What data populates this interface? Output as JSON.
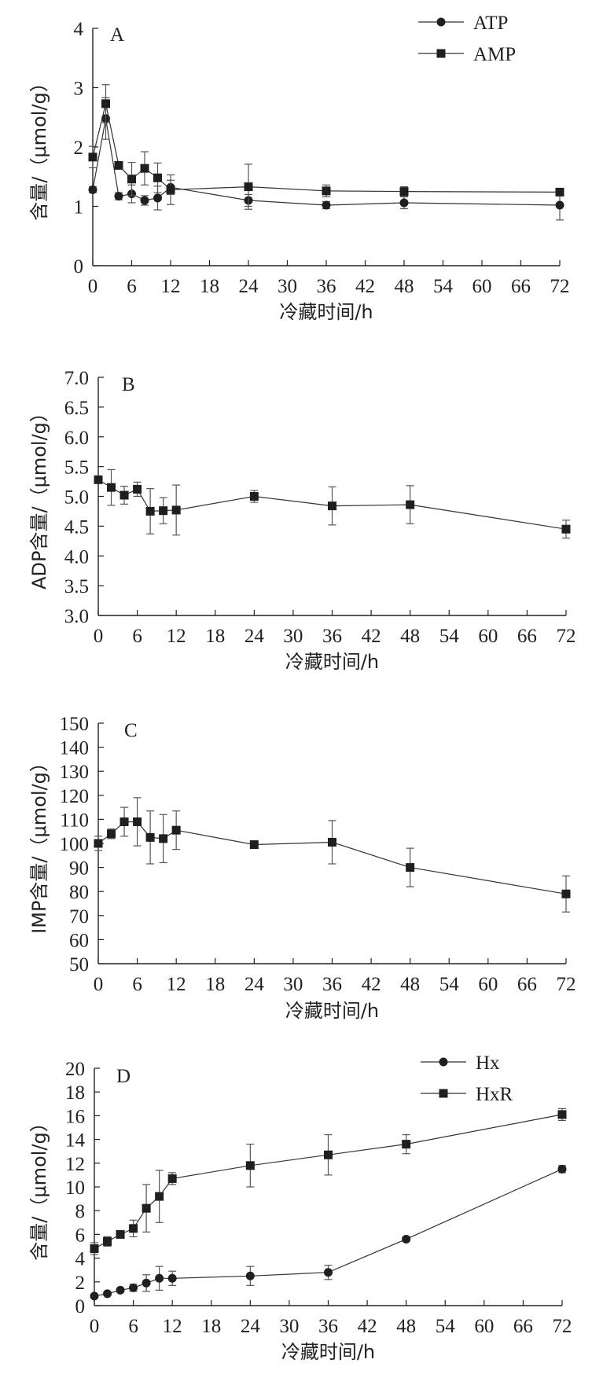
{
  "chart_data": [
    {
      "type": "line",
      "panel_label": "A",
      "xlabel": "冷藏时间/h",
      "ylabel": "含量/（μmol/g）",
      "xlim": [
        0,
        72
      ],
      "ylim": [
        0,
        4
      ],
      "xticks": [
        0,
        6,
        12,
        18,
        24,
        30,
        36,
        42,
        48,
        54,
        60,
        66,
        72
      ],
      "yticks": [
        0,
        1,
        2,
        3,
        4
      ],
      "ytick_decimals": 0,
      "grid": false,
      "legend": "top-right",
      "series": [
        {
          "name": "ATP",
          "marker": "circle",
          "x": [
            0,
            2,
            4,
            6,
            8,
            10,
            12,
            24,
            36,
            48,
            72
          ],
          "y": [
            1.28,
            2.48,
            1.17,
            1.21,
            1.1,
            1.14,
            1.32,
            1.1,
            1.02,
            1.06,
            1.02
          ],
          "err": [
            0.05,
            0.35,
            0.06,
            0.15,
            0.08,
            0.2,
            0.12,
            0.1,
            0.06,
            0.1,
            0.25
          ]
        },
        {
          "name": "AMP",
          "marker": "square",
          "x": [
            0,
            2,
            4,
            6,
            8,
            10,
            12,
            24,
            36,
            48,
            72
          ],
          "y": [
            1.83,
            2.73,
            1.69,
            1.46,
            1.64,
            1.48,
            1.28,
            1.33,
            1.26,
            1.25,
            1.24
          ],
          "err": [
            0.18,
            0.32,
            0.05,
            0.28,
            0.28,
            0.25,
            0.25,
            0.38,
            0.1,
            0.08,
            0.05
          ]
        }
      ]
    },
    {
      "type": "line",
      "panel_label": "B",
      "xlabel": "冷藏时间/h",
      "ylabel": "ADP含量/（μmol/g）",
      "xlim": [
        0,
        72
      ],
      "ylim": [
        3.0,
        7.0
      ],
      "xticks": [
        0,
        6,
        12,
        18,
        24,
        30,
        36,
        42,
        48,
        54,
        60,
        66,
        72
      ],
      "yticks": [
        3.0,
        3.5,
        4.0,
        4.5,
        5.0,
        5.5,
        6.0,
        6.5,
        7.0
      ],
      "ytick_decimals": 1,
      "grid": false,
      "series": [
        {
          "marker": "square",
          "x": [
            0,
            2,
            4,
            6,
            8,
            10,
            12,
            24,
            36,
            48,
            72
          ],
          "y": [
            5.28,
            5.15,
            5.02,
            5.12,
            4.75,
            4.76,
            4.77,
            5.0,
            4.84,
            4.86,
            4.45
          ],
          "err": [
            0.05,
            0.3,
            0.15,
            0.12,
            0.38,
            0.22,
            0.42,
            0.1,
            0.32,
            0.32,
            0.15
          ]
        }
      ]
    },
    {
      "type": "line",
      "panel_label": "C",
      "xlabel": "冷藏时间/h",
      "ylabel": "IMP含量/（μmol/g）",
      "xlim": [
        0,
        72
      ],
      "ylim": [
        50,
        150
      ],
      "xticks": [
        0,
        6,
        12,
        18,
        24,
        30,
        36,
        42,
        48,
        54,
        60,
        66,
        72
      ],
      "yticks": [
        50,
        60,
        70,
        80,
        90,
        100,
        110,
        120,
        130,
        140,
        150
      ],
      "ytick_decimals": 0,
      "grid": false,
      "series": [
        {
          "marker": "square",
          "x": [
            0,
            2,
            4,
            6,
            8,
            10,
            12,
            24,
            36,
            48,
            72
          ],
          "y": [
            100,
            104,
            109,
            109,
            102.5,
            102,
            105.5,
            99.5,
            100.5,
            90,
            79
          ],
          "err": [
            3,
            2,
            6,
            10,
            11,
            10,
            8,
            1.5,
            9,
            8,
            7.5
          ]
        }
      ]
    },
    {
      "type": "line",
      "panel_label": "D",
      "xlabel": "冷藏时间/h",
      "ylabel": "含量/（μmol/g）",
      "xlim": [
        0,
        72
      ],
      "ylim": [
        0,
        20
      ],
      "xticks": [
        0,
        6,
        12,
        18,
        24,
        30,
        36,
        42,
        48,
        54,
        60,
        66,
        72
      ],
      "yticks": [
        0,
        2,
        4,
        6,
        8,
        10,
        12,
        14,
        16,
        18,
        20
      ],
      "ytick_decimals": 0,
      "grid": false,
      "legend": "top-right",
      "series": [
        {
          "name": "Hx",
          "marker": "circle",
          "x": [
            0,
            2,
            4,
            6,
            8,
            10,
            12,
            24,
            36,
            48,
            72
          ],
          "y": [
            0.8,
            1.0,
            1.3,
            1.5,
            1.9,
            2.3,
            2.3,
            2.5,
            2.8,
            5.6,
            11.5
          ],
          "err": [
            0.1,
            0.15,
            0.15,
            0.3,
            0.7,
            1.0,
            0.6,
            0.8,
            0.6,
            0.2,
            0.3
          ]
        },
        {
          "name": "HxR",
          "marker": "square",
          "x": [
            0,
            2,
            4,
            6,
            8,
            10,
            12,
            24,
            36,
            48,
            72
          ],
          "y": [
            4.8,
            5.4,
            6.0,
            6.5,
            8.2,
            9.2,
            10.7,
            11.8,
            12.7,
            13.6,
            16.1
          ],
          "err": [
            0.5,
            0.4,
            0.3,
            0.7,
            2.0,
            2.2,
            0.5,
            1.8,
            1.7,
            0.8,
            0.5
          ]
        }
      ]
    }
  ]
}
